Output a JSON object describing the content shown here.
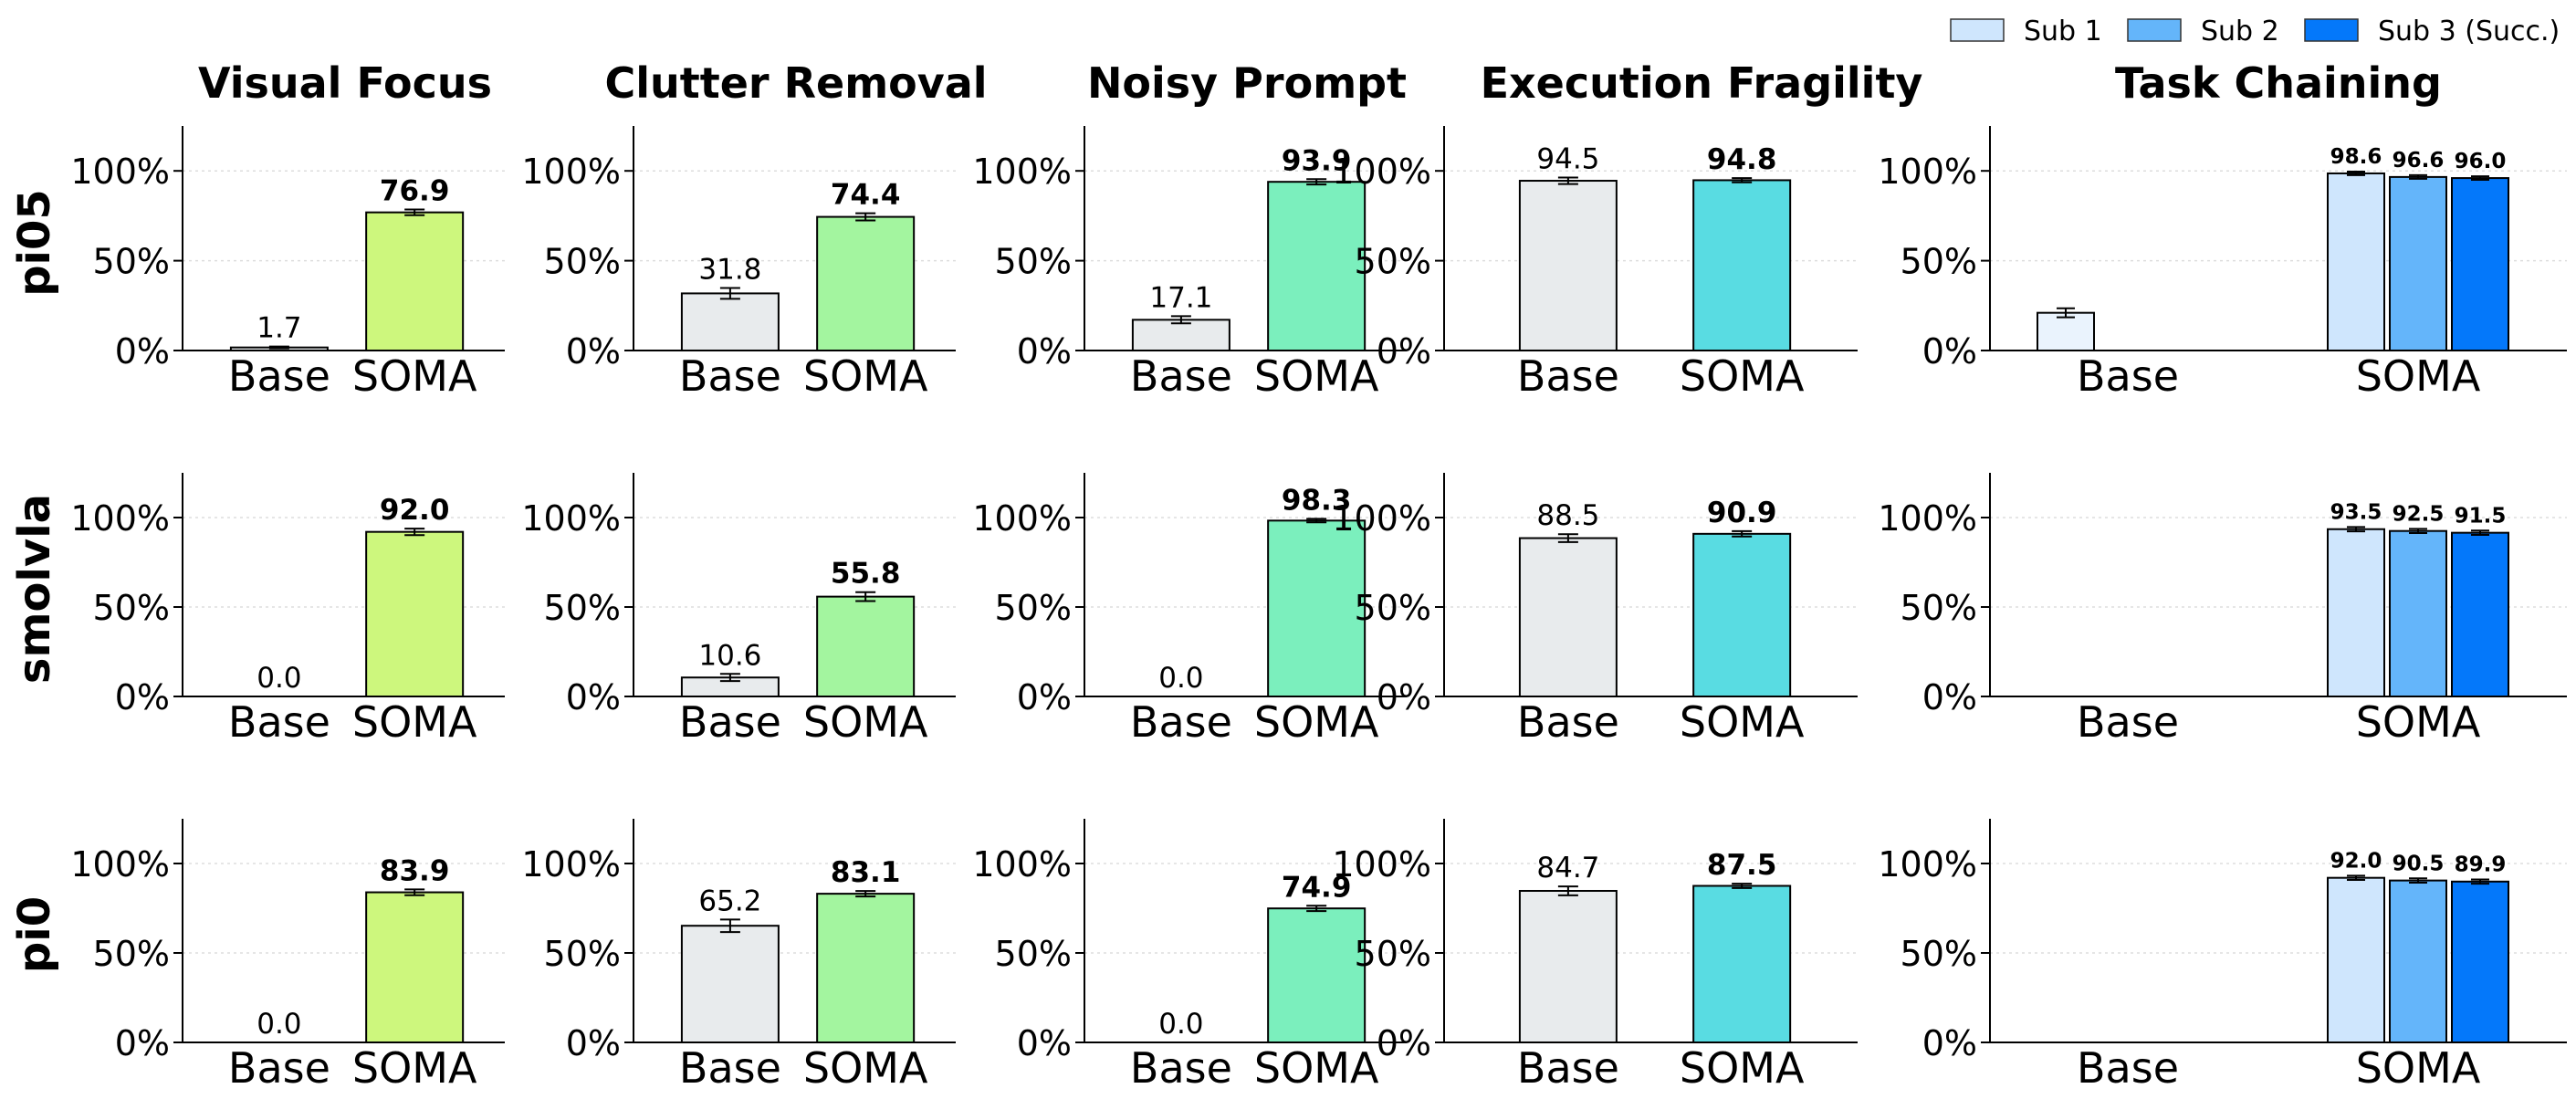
{
  "legend": [
    {
      "label": "Sub 1",
      "color": "#cfe6fd"
    },
    {
      "label": "Sub 2",
      "color": "#64b5fa"
    },
    {
      "label": "Sub 3 (Succ.)",
      "color": "#0478fa"
    }
  ],
  "colors": {
    "base": "#e8ebed",
    "base_chain": "#eaf3fd",
    "visual_focus": "#cdf77d",
    "clutter_removal": "#a3f59f",
    "noisy_prompt": "#7befbd",
    "execution_fragility": "#59dce2",
    "grid": "#dddddd",
    "axis": "#000000"
  },
  "chart_data": {
    "type": "bar",
    "columns": [
      "Visual Focus",
      "Clutter Removal",
      "Noisy Prompt",
      "Execution Fragility",
      "Task Chaining"
    ],
    "rows": [
      "pi05",
      "smolvla",
      "pi0"
    ],
    "categories": [
      "Base",
      "SOMA"
    ],
    "y_ticks": [
      "0%",
      "50%",
      "100%"
    ],
    "ylim": [
      0,
      125
    ],
    "grid": "horizontal dotted at 50% and 100%",
    "legend_position": "top-right",
    "panels": [
      {
        "row": "pi05",
        "column": "Visual Focus",
        "base": 1.7,
        "soma": 76.9,
        "base_err": 0.5,
        "soma_err": 1.6,
        "base_label": "1.7",
        "soma_label": "76.9"
      },
      {
        "row": "pi05",
        "column": "Clutter Removal",
        "base": 31.8,
        "soma": 74.4,
        "base_err": 3.0,
        "soma_err": 2.0,
        "base_label": "31.8",
        "soma_label": "74.4"
      },
      {
        "row": "pi05",
        "column": "Noisy Prompt",
        "base": 17.1,
        "soma": 93.9,
        "base_err": 2.0,
        "soma_err": 1.5,
        "base_label": "17.1",
        "soma_label": "93.9"
      },
      {
        "row": "pi05",
        "column": "Execution Fragility",
        "base": 94.5,
        "soma": 94.8,
        "base_err": 1.8,
        "soma_err": 1.2,
        "base_label": "94.5",
        "soma_label": "94.8"
      },
      {
        "row": "pi05",
        "column": "Task Chaining",
        "base": [
          21.0,
          0,
          0
        ],
        "soma": [
          98.6,
          96.6,
          96.0
        ],
        "base_err": [
          2.5,
          0,
          0
        ],
        "soma_err": [
          1.0,
          1.0,
          1.0
        ],
        "soma_labels": [
          "98.6",
          "96.6",
          "96.0"
        ]
      },
      {
        "row": "smolvla",
        "column": "Visual Focus",
        "base": 0.0,
        "soma": 92.0,
        "base_err": 0,
        "soma_err": 1.8,
        "base_label": "0.0",
        "soma_label": "92.0"
      },
      {
        "row": "smolvla",
        "column": "Clutter Removal",
        "base": 10.6,
        "soma": 55.8,
        "base_err": 2.0,
        "soma_err": 2.5,
        "base_label": "10.6",
        "soma_label": "55.8"
      },
      {
        "row": "smolvla",
        "column": "Noisy Prompt",
        "base": 0.0,
        "soma": 98.3,
        "base_err": 0,
        "soma_err": 1.0,
        "base_label": "0.0",
        "soma_label": "98.3"
      },
      {
        "row": "smolvla",
        "column": "Execution Fragility",
        "base": 88.5,
        "soma": 90.9,
        "base_err": 2.2,
        "soma_err": 1.5,
        "base_label": "88.5",
        "soma_label": "90.9"
      },
      {
        "row": "smolvla",
        "column": "Task Chaining",
        "base": [
          0,
          0,
          0
        ],
        "soma": [
          93.5,
          92.5,
          91.5
        ],
        "base_err": [
          0,
          0,
          0
        ],
        "soma_err": [
          1.2,
          1.2,
          1.2
        ],
        "soma_labels": [
          "93.5",
          "92.5",
          "91.5"
        ]
      },
      {
        "row": "pi0",
        "column": "Visual Focus",
        "base": 0.0,
        "soma": 83.9,
        "base_err": 0,
        "soma_err": 1.6,
        "base_label": "0.0",
        "soma_label": "83.9"
      },
      {
        "row": "pi0",
        "column": "Clutter Removal",
        "base": 65.2,
        "soma": 83.1,
        "base_err": 3.5,
        "soma_err": 1.5,
        "base_label": "65.2",
        "soma_label": "83.1"
      },
      {
        "row": "pi0",
        "column": "Noisy Prompt",
        "base": 0.0,
        "soma": 74.9,
        "base_err": 0,
        "soma_err": 1.5,
        "base_label": "0.0",
        "soma_label": "74.9"
      },
      {
        "row": "pi0",
        "column": "Execution Fragility",
        "base": 84.7,
        "soma": 87.5,
        "base_err": 2.5,
        "soma_err": 1.2,
        "base_label": "84.7",
        "soma_label": "87.5"
      },
      {
        "row": "pi0",
        "column": "Task Chaining",
        "base": [
          0,
          0,
          0
        ],
        "soma": [
          92.0,
          90.5,
          89.9
        ],
        "base_err": [
          0,
          0,
          0
        ],
        "soma_err": [
          1.2,
          1.2,
          1.2
        ],
        "soma_labels": [
          "92.0",
          "90.5",
          "89.9"
        ]
      }
    ]
  }
}
